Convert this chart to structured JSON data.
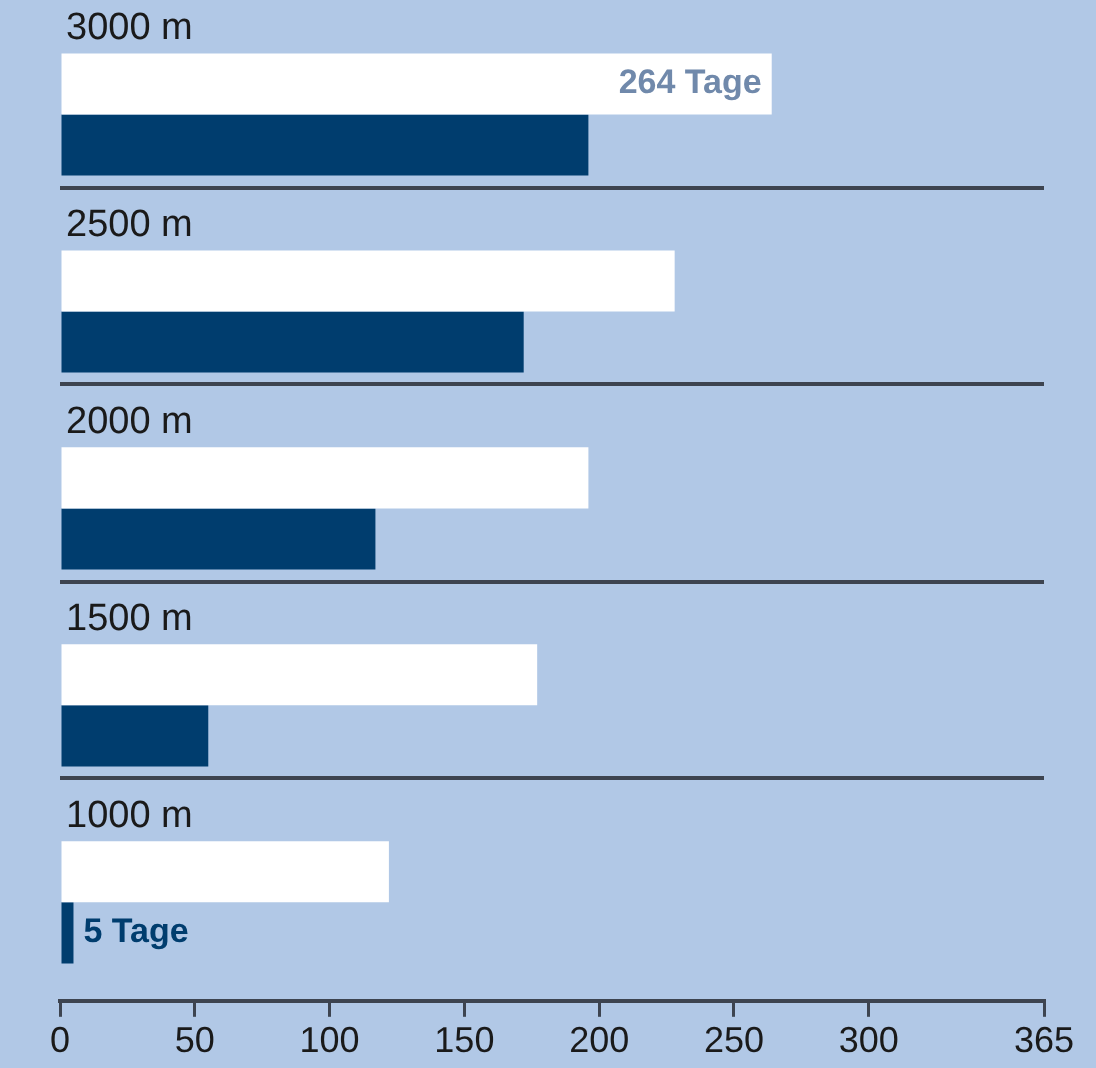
{
  "chart_data": {
    "type": "bar",
    "orientation": "horizontal",
    "categories": [
      "3000 m",
      "2500 m",
      "2000 m",
      "1500 m",
      "1000 m"
    ],
    "series": [
      {
        "color": "#ffffff",
        "values": [
          264,
          228,
          196,
          177,
          122
        ],
        "value_labels": [
          "264 Tage",
          null,
          null,
          null,
          null
        ]
      },
      {
        "color": "#003d6e",
        "values": [
          196,
          172,
          117,
          55,
          5
        ],
        "value_labels": [
          null,
          null,
          null,
          null,
          "5 Tage"
        ]
      }
    ],
    "xlim": [
      0,
      365
    ],
    "xticks": [
      0,
      50,
      100,
      150,
      200,
      250,
      300,
      365
    ],
    "grid": false,
    "legend": false
  }
}
